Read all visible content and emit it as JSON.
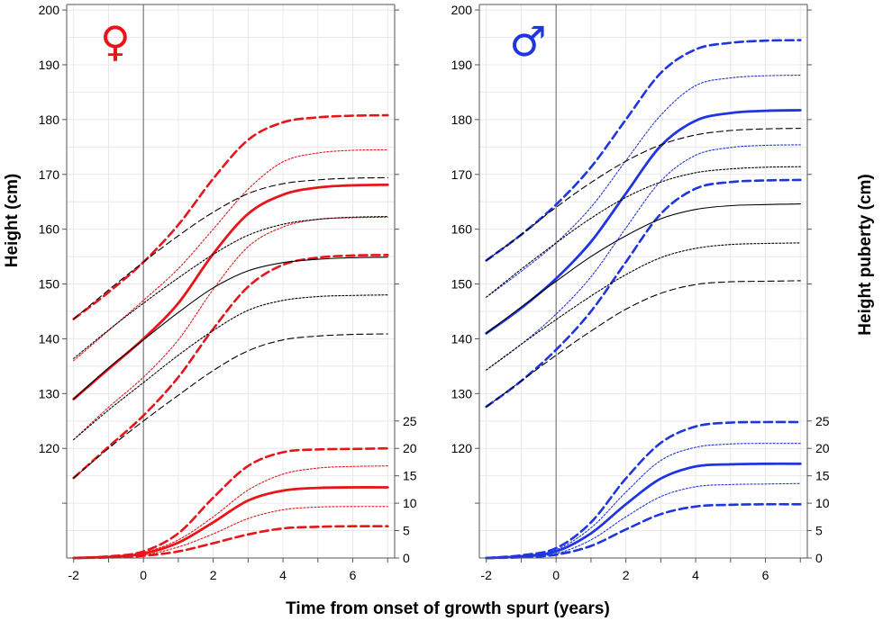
{
  "figure": {
    "xlabel": "Time from onset of growth spurt (years)",
    "ylabel_left": "Height (cm)",
    "ylabel_right": "Height puberty (cm)"
  },
  "chart_data": [
    {
      "type": "line",
      "panel": "female",
      "symbol": "♀",
      "symbol_color": "#e8141a",
      "accent_color": "#e8141a",
      "xlim": [
        -2.2,
        7.2
      ],
      "x_ticks": [
        -2,
        0,
        2,
        4,
        6
      ],
      "ylim_left": [
        100,
        201
      ],
      "y_ticks_left": [
        120,
        130,
        140,
        150,
        160,
        170,
        180,
        190,
        200
      ],
      "ylim_right": [
        0,
        25
      ],
      "y_ticks_right": [
        0,
        5,
        10,
        15,
        20,
        25
      ],
      "grid": true,
      "vline_x": 0,
      "x": [
        -2,
        -1,
        0,
        1,
        2,
        3,
        4,
        5,
        6,
        7
      ],
      "series": [
        {
          "axis": "left",
          "color": "#e8141a",
          "style": "thick-dashed",
          "values": [
            143.6,
            148.5,
            154.0,
            160.8,
            169.2,
            176.3,
            179.5,
            180.4,
            180.7,
            180.8
          ]
        },
        {
          "axis": "left",
          "color": "#e8141a",
          "style": "thin-dotted",
          "values": [
            136.0,
            141.5,
            147.0,
            152.8,
            160.0,
            167.3,
            172.3,
            173.9,
            174.4,
            174.5
          ]
        },
        {
          "axis": "left",
          "color": "#e8141a",
          "style": "solid",
          "values": [
            129.0,
            134.5,
            140.0,
            146.5,
            155.5,
            162.8,
            166.3,
            167.6,
            168.0,
            168.1
          ]
        },
        {
          "axis": "left",
          "color": "#e8141a",
          "style": "thin-dotted",
          "values": [
            121.6,
            127.5,
            133.0,
            139.8,
            149.0,
            156.8,
            160.4,
            161.8,
            162.1,
            162.2
          ]
        },
        {
          "axis": "left",
          "color": "#e8141a",
          "style": "thick-dashed",
          "values": [
            114.6,
            120.3,
            126.0,
            133.0,
            141.8,
            149.5,
            153.5,
            154.8,
            155.2,
            155.3
          ]
        },
        {
          "axis": "left",
          "color": "#000000",
          "style": "thin-dashed",
          "values": [
            143.6,
            148.9,
            154.0,
            158.8,
            163.1,
            166.5,
            168.3,
            169.0,
            169.3,
            169.4
          ]
        },
        {
          "axis": "left",
          "color": "#000000",
          "style": "thin-dotted",
          "values": [
            136.4,
            141.6,
            146.5,
            151.1,
            155.4,
            158.9,
            160.9,
            161.8,
            162.2,
            162.3
          ]
        },
        {
          "axis": "left",
          "color": "#000000",
          "style": "thin-solid",
          "values": [
            129.0,
            134.7,
            139.8,
            144.8,
            149.3,
            152.4,
            153.9,
            154.5,
            154.8,
            154.9
          ]
        },
        {
          "axis": "left",
          "color": "#000000",
          "style": "thin-dotted",
          "values": [
            121.6,
            127.0,
            132.0,
            137.0,
            141.5,
            145.2,
            147.0,
            147.7,
            147.9,
            148.0
          ]
        },
        {
          "axis": "left",
          "color": "#000000",
          "style": "thin-dashed",
          "values": [
            114.6,
            120.0,
            125.0,
            129.7,
            134.2,
            137.8,
            139.8,
            140.5,
            140.8,
            140.9
          ]
        },
        {
          "axis": "right",
          "color": "#e8141a",
          "style": "thick-dashed",
          "values": [
            0.0,
            0.3,
            1.2,
            4.5,
            11.0,
            16.8,
            19.3,
            19.8,
            19.9,
            20.0
          ]
        },
        {
          "axis": "right",
          "color": "#e8141a",
          "style": "thin-dotted",
          "values": [
            0.0,
            0.25,
            1.0,
            3.3,
            7.5,
            12.4,
            15.3,
            16.4,
            16.7,
            16.8
          ]
        },
        {
          "axis": "right",
          "color": "#e8141a",
          "style": "solid",
          "values": [
            0.0,
            0.2,
            0.8,
            2.8,
            6.5,
            10.5,
            12.3,
            12.8,
            12.9,
            12.9
          ]
        },
        {
          "axis": "right",
          "color": "#e8141a",
          "style": "thin-dotted",
          "values": [
            0.0,
            0.15,
            0.55,
            2.0,
            4.4,
            7.2,
            8.8,
            9.3,
            9.4,
            9.4
          ]
        },
        {
          "axis": "right",
          "color": "#e8141a",
          "style": "thick-dashed",
          "values": [
            0.0,
            0.1,
            0.4,
            1.2,
            2.7,
            4.3,
            5.4,
            5.7,
            5.8,
            5.8
          ]
        }
      ]
    },
    {
      "type": "line",
      "panel": "male",
      "symbol": "♂",
      "symbol_color": "#1e35e0",
      "accent_color": "#1e35e0",
      "xlim": [
        -2.2,
        7.2
      ],
      "x_ticks": [
        -2,
        0,
        2,
        4,
        6
      ],
      "ylim_left": [
        100,
        201
      ],
      "y_ticks_left": [
        120,
        130,
        140,
        150,
        160,
        170,
        180,
        190,
        200
      ],
      "ylim_right": [
        0,
        25
      ],
      "y_ticks_right": [
        0,
        5,
        10,
        15,
        20,
        25
      ],
      "grid": true,
      "vline_x": 0,
      "x": [
        -2,
        -1,
        0,
        1,
        2,
        3,
        4,
        5,
        6,
        7
      ],
      "series": [
        {
          "axis": "left",
          "color": "#1e35e0",
          "style": "thick-dashed",
          "values": [
            154.3,
            159.0,
            164.5,
            171.3,
            180.0,
            188.5,
            192.8,
            194.0,
            194.4,
            194.5
          ]
        },
        {
          "axis": "left",
          "color": "#1e35e0",
          "style": "thin-dotted",
          "values": [
            147.6,
            152.3,
            157.5,
            164.0,
            172.5,
            180.8,
            186.2,
            187.6,
            188.0,
            188.1
          ]
        },
        {
          "axis": "left",
          "color": "#1e35e0",
          "style": "solid",
          "values": [
            141.0,
            145.6,
            151.0,
            157.7,
            166.5,
            175.2,
            179.8,
            181.2,
            181.6,
            181.7
          ]
        },
        {
          "axis": "left",
          "color": "#1e35e0",
          "style": "thin-dotted",
          "values": [
            134.3,
            139.0,
            144.5,
            151.3,
            160.2,
            168.8,
            173.5,
            174.9,
            175.3,
            175.4
          ]
        },
        {
          "axis": "left",
          "color": "#1e35e0",
          "style": "thick-dashed",
          "values": [
            127.6,
            132.3,
            138.0,
            145.0,
            154.0,
            162.8,
            167.4,
            168.6,
            168.9,
            169.0
          ]
        },
        {
          "axis": "left",
          "color": "#000000",
          "style": "thin-dashed",
          "values": [
            154.3,
            159.0,
            164.0,
            168.5,
            172.4,
            175.4,
            177.2,
            178.0,
            178.3,
            178.4
          ]
        },
        {
          "axis": "left",
          "color": "#000000",
          "style": "thin-dotted",
          "values": [
            147.6,
            152.7,
            157.5,
            162.0,
            165.8,
            168.6,
            170.3,
            171.0,
            171.3,
            171.4
          ]
        },
        {
          "axis": "left",
          "color": "#000000",
          "style": "thin-solid",
          "values": [
            141.0,
            145.8,
            150.5,
            155.0,
            158.8,
            161.9,
            163.6,
            164.3,
            164.5,
            164.6
          ]
        },
        {
          "axis": "left",
          "color": "#000000",
          "style": "thin-dotted",
          "values": [
            134.3,
            139.0,
            143.5,
            147.8,
            151.7,
            154.8,
            156.5,
            157.2,
            157.4,
            157.5
          ]
        },
        {
          "axis": "left",
          "color": "#000000",
          "style": "thin-dashed",
          "values": [
            127.6,
            132.3,
            137.0,
            141.4,
            145.4,
            148.3,
            149.9,
            150.4,
            150.5,
            150.6
          ]
        },
        {
          "axis": "right",
          "color": "#1e35e0",
          "style": "thick-dashed",
          "values": [
            0.0,
            0.5,
            1.8,
            6.5,
            14.5,
            21.0,
            24.0,
            24.7,
            24.8,
            24.8
          ]
        },
        {
          "axis": "right",
          "color": "#1e35e0",
          "style": "thin-dotted",
          "values": [
            0.0,
            0.4,
            1.5,
            5.5,
            12.0,
            17.8,
            20.2,
            20.8,
            20.9,
            20.9
          ]
        },
        {
          "axis": "right",
          "color": "#1e35e0",
          "style": "solid",
          "values": [
            0.0,
            0.3,
            1.2,
            4.5,
            9.8,
            14.5,
            16.7,
            17.1,
            17.2,
            17.2
          ]
        },
        {
          "axis": "right",
          "color": "#1e35e0",
          "style": "thin-dotted",
          "values": [
            0.0,
            0.2,
            0.8,
            3.3,
            7.5,
            11.2,
            13.0,
            13.4,
            13.5,
            13.6
          ]
        },
        {
          "axis": "right",
          "color": "#1e35e0",
          "style": "thick-dashed",
          "values": [
            0.0,
            0.12,
            0.6,
            2.2,
            5.2,
            8.0,
            9.4,
            9.7,
            9.8,
            9.8
          ]
        }
      ]
    }
  ]
}
